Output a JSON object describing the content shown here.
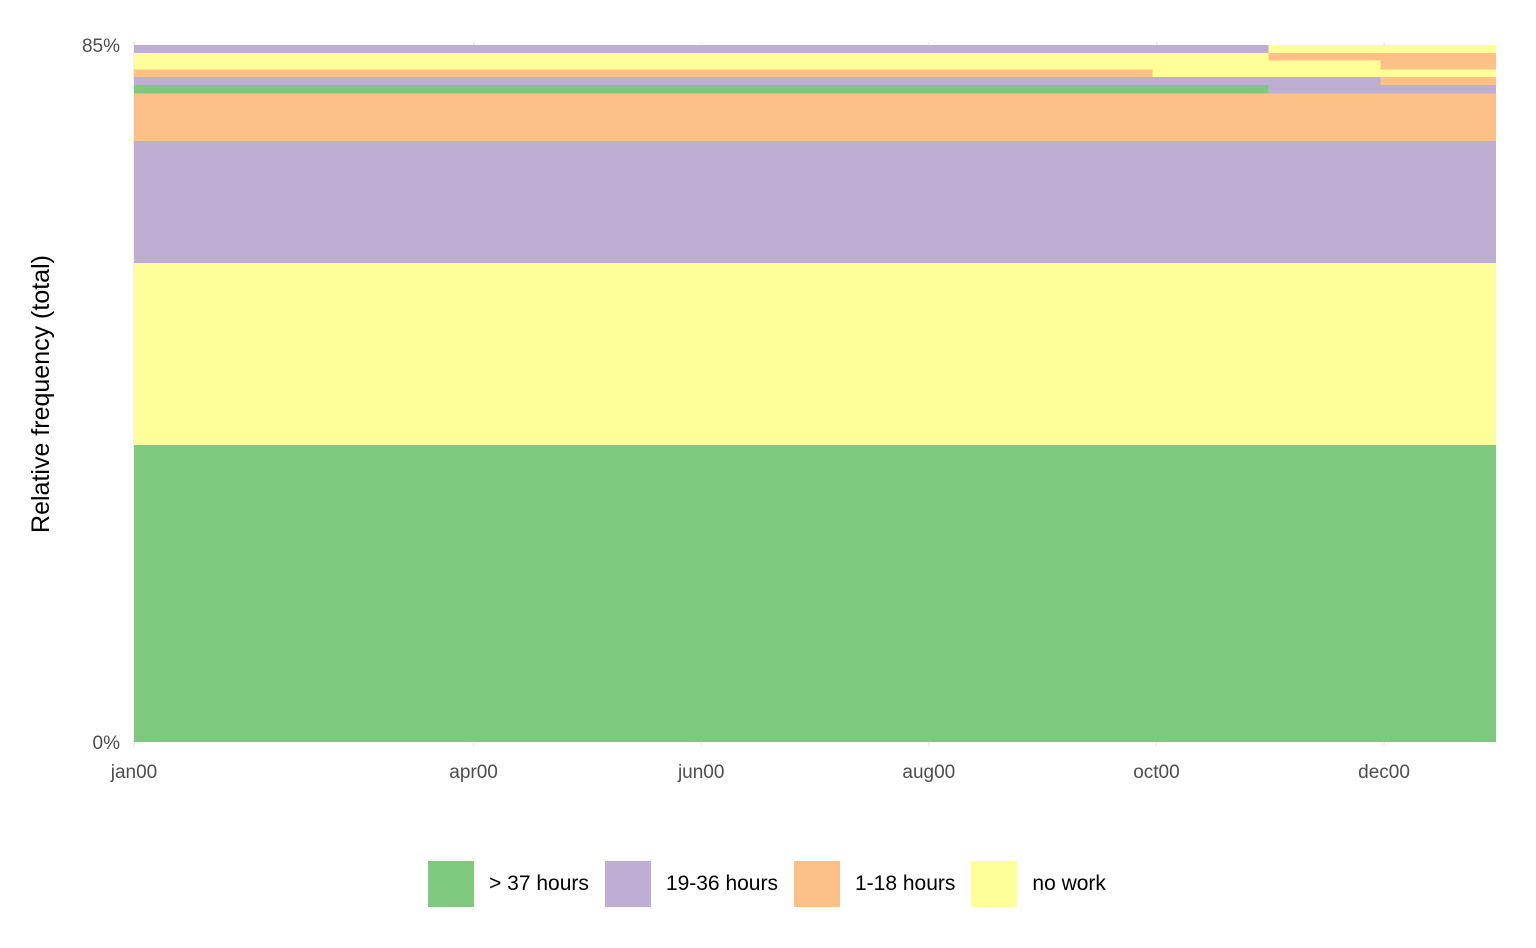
{
  "chart_data": {
    "type": "area",
    "ylabel": "Relative frequency (total)",
    "xlabel": "",
    "ylim": [
      0,
      85
    ],
    "y_ticks": [
      {
        "value": 0,
        "label": "0%"
      },
      {
        "value": 85,
        "label": "85%"
      }
    ],
    "x_domain": [
      "2000-01-01",
      "2000-12-31"
    ],
    "x_ticks": [
      {
        "date": "2000-01-01",
        "label": "jan00"
      },
      {
        "date": "2000-04-01",
        "label": "apr00"
      },
      {
        "date": "2000-06-01",
        "label": "jun00"
      },
      {
        "date": "2000-08-01",
        "label": "aug00"
      },
      {
        "date": "2000-10-01",
        "label": "oct00"
      },
      {
        "date": "2000-12-01",
        "label": "dec00"
      }
    ],
    "legend_position": "bottom",
    "grid": true,
    "series": [
      {
        "name": "> 37 hours",
        "color": "#7fc97f"
      },
      {
        "name": "19-36 hours",
        "color": "#beaed4"
      },
      {
        "name": "1-18 hours",
        "color": "#fdc086"
      },
      {
        "name": "no work",
        "color": "#ffff99"
      }
    ],
    "bands": [
      {
        "from": "2000-01-01",
        "to": "2000-12-31",
        "y0": 0.0,
        "y1": 36.2,
        "state": "> 37 hours"
      },
      {
        "from": "2000-01-01",
        "to": "2000-12-31",
        "y0": 36.2,
        "y1": 58.4,
        "state": "no work"
      },
      {
        "from": "2000-01-01",
        "to": "2000-12-31",
        "y0": 58.4,
        "y1": 73.3,
        "state": "19-36 hours"
      },
      {
        "from": "2000-01-01",
        "to": "2000-12-31",
        "y0": 73.3,
        "y1": 79.1,
        "state": "1-18 hours"
      },
      {
        "from": "2000-01-01",
        "to": "2000-10-31",
        "y0": 79.1,
        "y1": 80.1,
        "state": "> 37 hours"
      },
      {
        "from": "2000-10-31",
        "to": "2000-12-31",
        "y0": 79.1,
        "y1": 80.1,
        "state": "19-36 hours"
      },
      {
        "from": "2000-01-01",
        "to": "2000-11-30",
        "y0": 80.1,
        "y1": 81.1,
        "state": "19-36 hours"
      },
      {
        "from": "2000-11-30",
        "to": "2000-12-31",
        "y0": 80.1,
        "y1": 81.1,
        "state": "1-18 hours"
      },
      {
        "from": "2000-01-01",
        "to": "2000-09-30",
        "y0": 81.1,
        "y1": 82.0,
        "state": "1-18 hours"
      },
      {
        "from": "2000-09-30",
        "to": "2000-12-31",
        "y0": 81.1,
        "y1": 82.0,
        "state": "no work"
      },
      {
        "from": "2000-01-01",
        "to": "2000-10-31",
        "y0": 82.0,
        "y1": 84.0,
        "state": "no work"
      },
      {
        "from": "2000-10-31",
        "to": "2000-11-30",
        "y0": 82.0,
        "y1": 83.1,
        "state": "no work"
      },
      {
        "from": "2000-10-31",
        "to": "2000-11-30",
        "y0": 83.1,
        "y1": 84.0,
        "state": "1-18 hours"
      },
      {
        "from": "2000-11-30",
        "to": "2000-12-31",
        "y0": 82.0,
        "y1": 84.0,
        "state": "1-18 hours"
      },
      {
        "from": "2000-01-01",
        "to": "2000-10-31",
        "y0": 84.0,
        "y1": 85.0,
        "state": "19-36 hours"
      },
      {
        "from": "2000-10-31",
        "to": "2000-12-31",
        "y0": 84.0,
        "y1": 85.0,
        "state": "no work"
      }
    ]
  }
}
